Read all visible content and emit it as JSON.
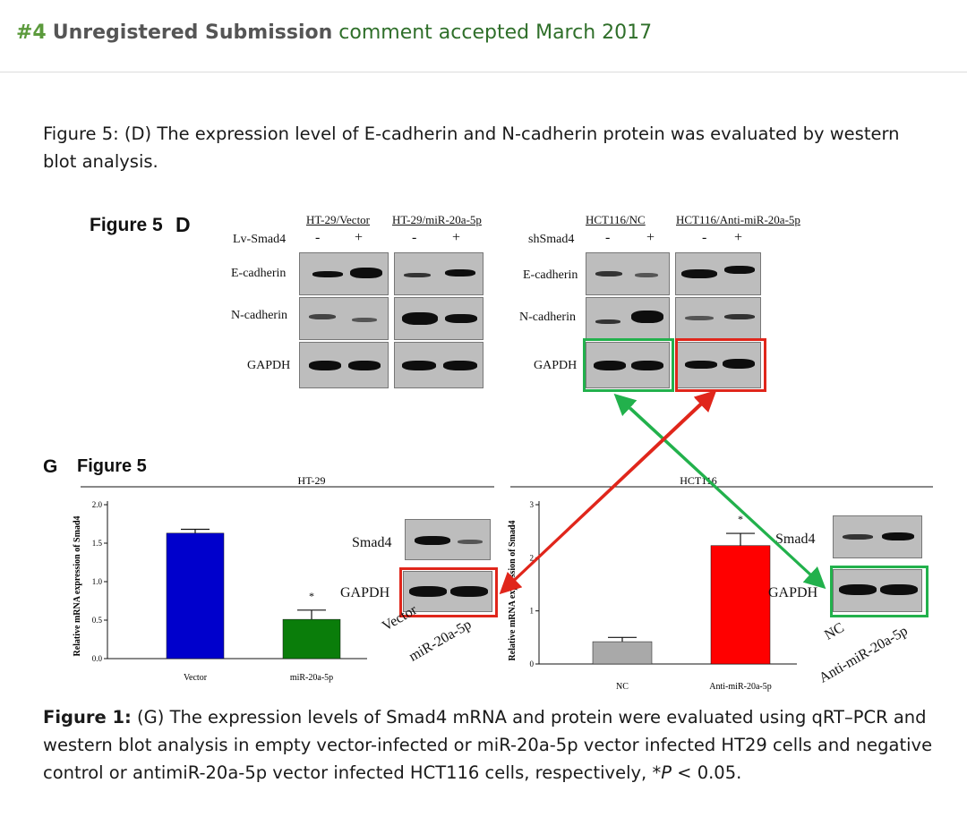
{
  "header": {
    "number": "#4",
    "user": "Unregistered Submission",
    "status": "comment accepted March 2017"
  },
  "caption_top": "Figure 5: (D) The expression level of E-cadherin and N-cadherin protein was evaluated by western blot analysis.",
  "caption_bottom": {
    "label": "Figure 1:",
    "text_before_p": " (G) The expression levels of Smad4 mRNA and protein were evaluated using qRT–PCR and western blot analysis in empty vector-infected or miR-20a-5p vector infected HT29 cells and negative control or antimiR-20a-5p vector infected HCT116 cells, respectively, *",
    "p_symbol": "P",
    "text_after_p": " < 0.05."
  },
  "fig5d": {
    "title": "Figure 5",
    "panel": "D",
    "left": {
      "group1": "HT-29/Vector",
      "group2": "HT-29/miR-20a-5p",
      "row_label": "Lv-Smad4",
      "signs": [
        "-",
        "+",
        "-",
        "+"
      ],
      "bands": [
        "E-cadherin",
        "N-cadherin",
        "GAPDH"
      ]
    },
    "right": {
      "group1": "HCT116/NC",
      "group2": "HCT116/Anti-miR-20a-5p",
      "row_label": "shSmad4",
      "signs": [
        "-",
        "+",
        "-",
        "+"
      ],
      "bands": [
        "E-cadherin",
        "N-cadherin",
        "GAPDH"
      ]
    }
  },
  "fig5g": {
    "panel": "G",
    "title": "Figure 5",
    "blot_left": {
      "labels": [
        "Smad4",
        "GAPDH"
      ],
      "lanes": [
        "Vector",
        "miR-20a-5p"
      ]
    },
    "blot_right": {
      "labels": [
        "Smad4",
        "GAPDH"
      ],
      "lanes": [
        "NC",
        "Anti-miR-20a-5p"
      ]
    }
  },
  "colors": {
    "green_box": "#22b14c",
    "red_box": "#e0261b",
    "bar_blue": "#0000cc",
    "bar_green": "#0a7d0a",
    "bar_gray": "#a9a9a9",
    "bar_red": "#ff0000"
  },
  "chart_data": [
    {
      "type": "bar",
      "title": "HT-29",
      "ylabel": "Relative mRNA expression of Smad4",
      "categories": [
        "Vector",
        "miR-20a-5p"
      ],
      "values": [
        1.63,
        0.51
      ],
      "errors": [
        0.05,
        0.12
      ],
      "bar_colors": [
        "#0000cc",
        "#0a7d0a"
      ],
      "significance": [
        "",
        "*"
      ],
      "ylim": [
        0,
        2.0
      ],
      "yticks": [
        "0.0",
        "0.5",
        "1.0",
        "1.5",
        "2.0"
      ]
    },
    {
      "type": "bar",
      "title": "HCT116",
      "ylabel": "Relative mRNA expression of Smad4",
      "categories": [
        "NC",
        "Anti-miR-20a-5p"
      ],
      "values": [
        0.42,
        2.23
      ],
      "errors": [
        0.08,
        0.23
      ],
      "bar_colors": [
        "#a9a9a9",
        "#ff0000"
      ],
      "significance": [
        "",
        "*"
      ],
      "ylim": [
        0,
        3
      ],
      "yticks": [
        "0",
        "1",
        "2",
        "3"
      ]
    }
  ]
}
